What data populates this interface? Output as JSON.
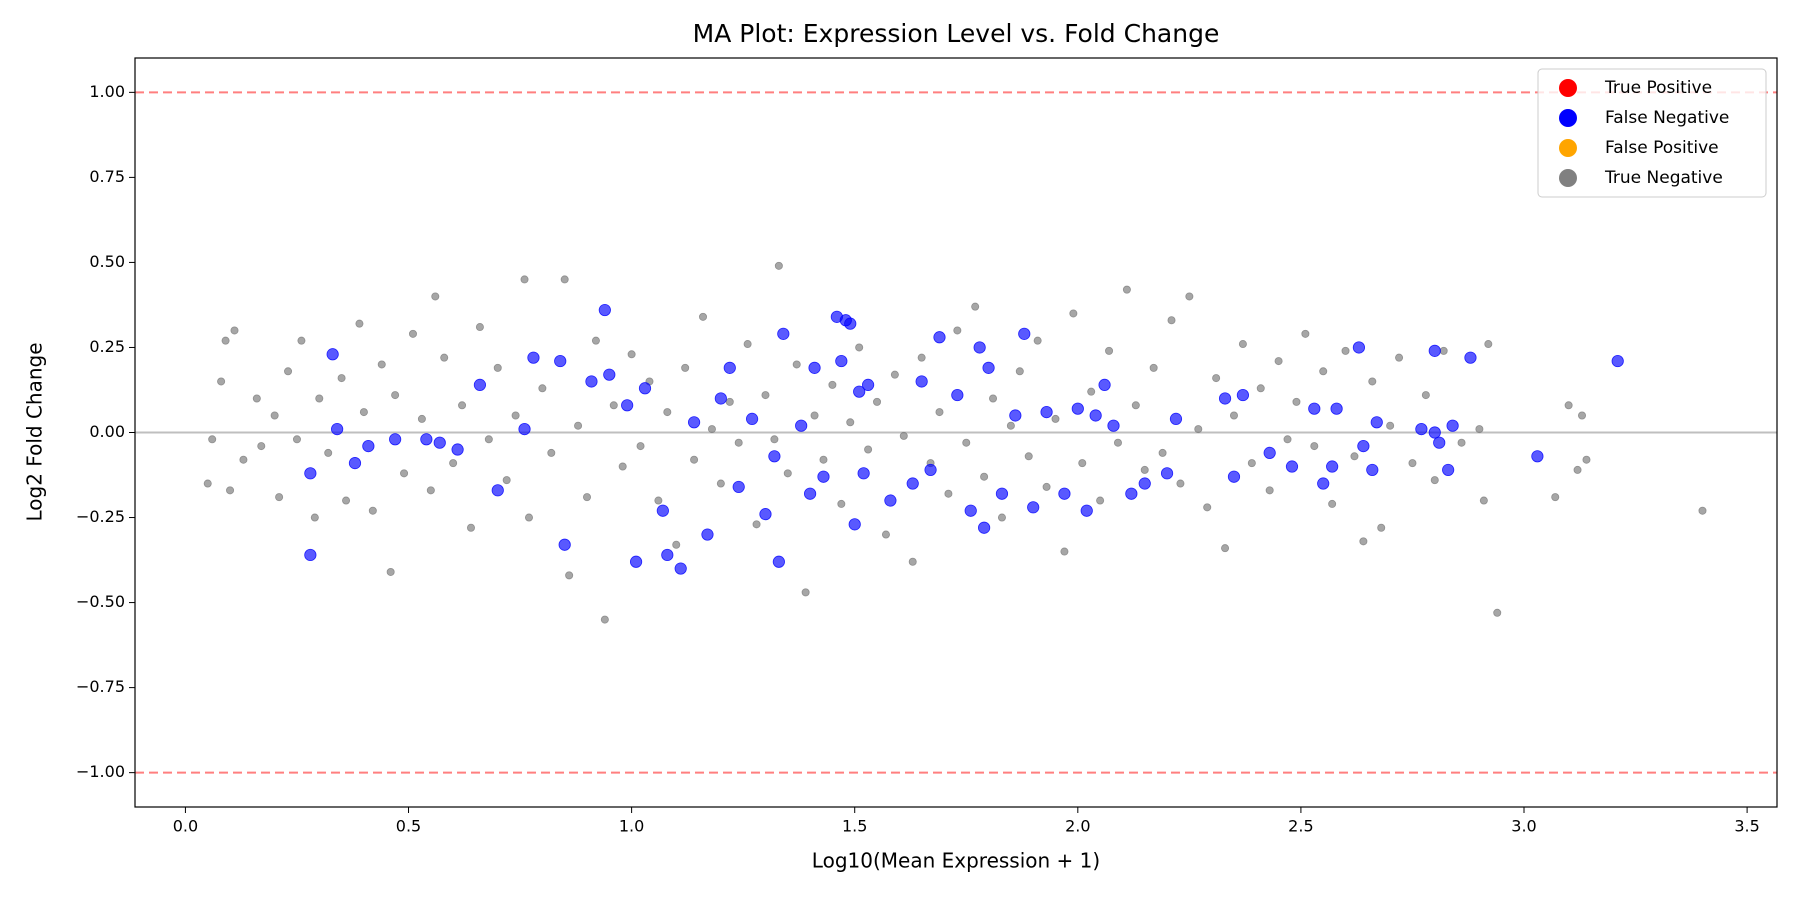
{
  "chart_data": {
    "type": "scatter",
    "title": "MA Plot: Expression Level vs. Fold Change",
    "x_label": "Log10(Mean Expression + 1)",
    "y_label": "Log2 Fold Change",
    "xlim": [
      -0.113,
      3.567
    ],
    "ylim": [
      -1.101,
      1.101
    ],
    "xticks": [
      {
        "value": 0,
        "label": "0.0"
      },
      {
        "value": 0.5,
        "label": "0.5"
      },
      {
        "value": 1,
        "label": "1.0"
      },
      {
        "value": 1.5,
        "label": "1.5"
      },
      {
        "value": 2,
        "label": "2.0"
      },
      {
        "value": 2.5,
        "label": "2.5"
      },
      {
        "value": 3,
        "label": "3.0"
      },
      {
        "value": 3.5,
        "label": "3.5"
      }
    ],
    "yticks": [
      {
        "value": -1,
        "label": "−1.00"
      },
      {
        "value": -0.75,
        "label": "−0.75"
      },
      {
        "value": -0.5,
        "label": "−0.50"
      },
      {
        "value": -0.25,
        "label": "−0.25"
      },
      {
        "value": 0,
        "label": "0.00"
      },
      {
        "value": 0.25,
        "label": "0.25"
      },
      {
        "value": 0.5,
        "label": "0.50"
      },
      {
        "value": 0.75,
        "label": "0.75"
      },
      {
        "value": 1,
        "label": "1.00"
      }
    ],
    "hlines": [
      {
        "value": 1,
        "color": "#ff0000",
        "style": "dashed"
      },
      {
        "value": -1,
        "color": "#ff0000",
        "style": "dashed"
      },
      {
        "value": 0,
        "color": "#808080",
        "style": "solid"
      }
    ],
    "legend": "upper right",
    "series": [
      {
        "name": "True Positive",
        "color": "#ff0000",
        "marker_size": 6,
        "x": [],
        "values": []
      },
      {
        "name": "False Negative",
        "color": "#0000ff",
        "marker_size": 6,
        "x": [
          0.28,
          0.28,
          0.33,
          0.34,
          0.38,
          0.41,
          0.47,
          0.54,
          0.57,
          0.61,
          0.66,
          0.7,
          0.76,
          0.78,
          0.84,
          0.85,
          0.91,
          0.94,
          0.95,
          0.99,
          1.01,
          1.03,
          1.07,
          1.08,
          1.11,
          1.14,
          1.17,
          1.2,
          1.22,
          1.24,
          1.27,
          1.3,
          1.32,
          1.33,
          1.34,
          1.38,
          1.4,
          1.41,
          1.43,
          1.46,
          1.47,
          1.48,
          1.49,
          1.5,
          1.51,
          1.52,
          1.53,
          1.58,
          1.63,
          1.65,
          1.67,
          1.69,
          1.73,
          1.76,
          1.78,
          1.79,
          1.8,
          1.83,
          1.86,
          1.88,
          1.9,
          1.93,
          1.97,
          2.0,
          2.02,
          2.04,
          2.06,
          2.08,
          2.12,
          2.15,
          2.2,
          2.22,
          2.33,
          2.35,
          2.37,
          2.43,
          2.48,
          2.53,
          2.55,
          2.57,
          2.58,
          2.63,
          2.64,
          2.66,
          2.67,
          2.77,
          2.8,
          2.8,
          2.81,
          2.83,
          2.84,
          2.88,
          3.03,
          3.21
        ],
        "values": [
          -0.36,
          -0.12,
          0.23,
          0.01,
          -0.09,
          -0.04,
          -0.02,
          -0.02,
          -0.03,
          -0.05,
          0.14,
          -0.17,
          0.01,
          0.22,
          0.21,
          -0.33,
          0.15,
          0.36,
          0.17,
          0.08,
          -0.38,
          0.13,
          -0.23,
          -0.36,
          -0.4,
          0.03,
          -0.3,
          0.1,
          0.19,
          -0.16,
          0.04,
          -0.24,
          -0.07,
          -0.38,
          0.29,
          0.02,
          -0.18,
          0.19,
          -0.13,
          0.34,
          0.21,
          0.33,
          0.32,
          -0.27,
          0.12,
          -0.12,
          0.14,
          -0.2,
          -0.15,
          0.15,
          -0.11,
          0.28,
          0.11,
          -0.23,
          0.25,
          -0.28,
          0.19,
          -0.18,
          0.05,
          0.29,
          -0.22,
          0.06,
          -0.18,
          0.07,
          -0.23,
          0.05,
          0.14,
          0.02,
          -0.18,
          -0.15,
          -0.12,
          0.04,
          0.1,
          -0.13,
          0.11,
          -0.06,
          -0.1,
          0.07,
          -0.15,
          -0.1,
          0.07,
          0.25,
          -0.04,
          -0.11,
          0.03,
          0.01,
          0.24,
          0,
          -0.03,
          -0.11,
          0.02,
          0.22,
          -0.07,
          0.21
        ]
      },
      {
        "name": "False Positive",
        "color": "#ffa500",
        "marker_size": 6,
        "x": [],
        "values": []
      },
      {
        "name": "True Negative",
        "color": "#808080",
        "marker_size": 4,
        "x": [
          0.05,
          0.06,
          0.08,
          0.09,
          0.11,
          0.1,
          0.13,
          0.16,
          0.17,
          0.2,
          0.21,
          0.23,
          0.25,
          0.26,
          0.29,
          0.3,
          0.32,
          0.35,
          0.36,
          0.39,
          0.4,
          0.42,
          0.44,
          0.46,
          0.47,
          0.49,
          0.51,
          0.53,
          0.55,
          0.56,
          0.58,
          0.6,
          0.62,
          0.64,
          0.66,
          0.68,
          0.7,
          0.72,
          0.74,
          0.76,
          0.77,
          0.8,
          0.82,
          0.85,
          0.86,
          0.88,
          0.9,
          0.92,
          0.94,
          0.96,
          0.98,
          1.0,
          1.02,
          1.04,
          1.06,
          1.08,
          1.1,
          1.12,
          1.14,
          1.16,
          1.18,
          1.2,
          1.22,
          1.24,
          1.26,
          1.28,
          1.3,
          1.32,
          1.33,
          1.35,
          1.37,
          1.39,
          1.41,
          1.43,
          1.45,
          1.47,
          1.49,
          1.51,
          1.53,
          1.55,
          1.57,
          1.59,
          1.61,
          1.63,
          1.65,
          1.67,
          1.69,
          1.71,
          1.73,
          1.75,
          1.77,
          1.79,
          1.81,
          1.83,
          1.85,
          1.87,
          1.89,
          1.91,
          1.93,
          1.95,
          1.97,
          1.99,
          2.01,
          2.03,
          2.05,
          2.07,
          2.09,
          2.11,
          2.13,
          2.15,
          2.17,
          2.19,
          2.21,
          2.23,
          2.25,
          2.27,
          2.29,
          2.31,
          2.33,
          2.35,
          2.37,
          2.39,
          2.41,
          2.43,
          2.45,
          2.47,
          2.49,
          2.51,
          2.53,
          2.55,
          2.57,
          2.6,
          2.62,
          2.64,
          2.66,
          2.68,
          2.7,
          2.72,
          2.75,
          2.78,
          2.8,
          2.82,
          2.86,
          2.9,
          2.91,
          2.92,
          2.94,
          3.07,
          3.1,
          3.12,
          3.13,
          3.14,
          3.4
        ],
        "values": [
          -0.15,
          -0.02,
          0.15,
          0.27,
          0.3,
          -0.17,
          -0.08,
          0.1,
          -0.04,
          0.05,
          -0.19,
          0.18,
          -0.02,
          0.27,
          -0.25,
          0.1,
          -0.06,
          0.16,
          -0.2,
          0.32,
          0.06,
          -0.23,
          0.2,
          -0.41,
          0.11,
          -0.12,
          0.29,
          0.04,
          -0.17,
          0.4,
          0.22,
          -0.09,
          0.08,
          -0.28,
          0.31,
          -0.02,
          0.19,
          -0.14,
          0.05,
          0.45,
          -0.25,
          0.13,
          -0.06,
          0.45,
          -0.42,
          0.02,
          -0.19,
          0.27,
          -0.55,
          0.08,
          -0.1,
          0.23,
          -0.04,
          0.15,
          -0.2,
          0.06,
          -0.33,
          0.19,
          -0.08,
          0.34,
          0.01,
          -0.15,
          0.09,
          -0.03,
          0.26,
          -0.27,
          0.11,
          -0.02,
          0.49,
          -0.12,
          0.2,
          -0.47,
          0.05,
          -0.08,
          0.14,
          -0.21,
          0.03,
          0.25,
          -0.05,
          0.09,
          -0.3,
          0.17,
          -0.01,
          -0.38,
          0.22,
          -0.09,
          0.06,
          -0.18,
          0.3,
          -0.03,
          0.37,
          -0.13,
          0.1,
          -0.25,
          0.02,
          0.18,
          -0.07,
          0.27,
          -0.16,
          0.04,
          -0.35,
          0.35,
          -0.09,
          0.12,
          -0.2,
          0.24,
          -0.03,
          0.42,
          0.08,
          -0.11,
          0.19,
          -0.06,
          0.33,
          -0.15,
          0.4,
          0.01,
          -0.22,
          0.16,
          -0.34,
          0.05,
          0.26,
          -0.09,
          0.13,
          -0.17,
          0.21,
          -0.02,
          0.09,
          0.29,
          -0.04,
          0.18,
          -0.21,
          0.24,
          -0.07,
          -0.32,
          0.15,
          -0.28,
          0.02,
          0.22,
          -0.09,
          0.11,
          -0.14,
          0.24,
          -0.03,
          0.01,
          -0.2,
          0.26,
          -0.53,
          -0.19,
          0.08,
          -0.11,
          0.05,
          -0.08,
          -0.23
        ]
      }
    ]
  }
}
